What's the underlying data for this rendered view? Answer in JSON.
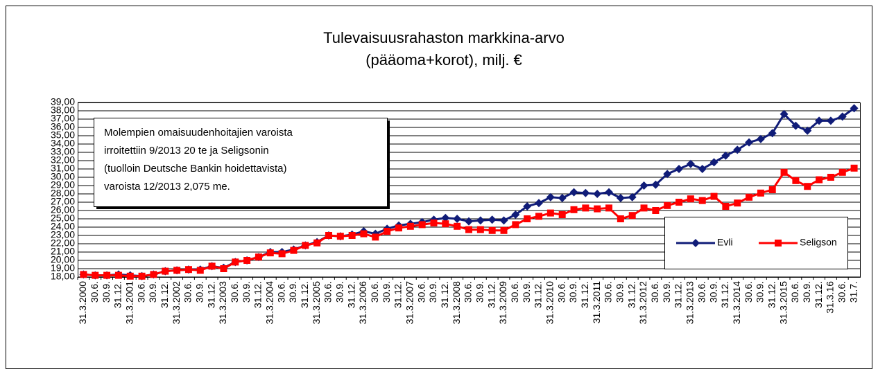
{
  "chart_data": {
    "type": "line",
    "title": [
      "Tulevaisuusrahaston markkina-arvo",
      "(pääoma+korot), milj. €"
    ],
    "annotation": [
      "Molempien omaisuudenhoitajien varoista",
      "irroitettiin 9/2013 20 te ja Seligsonin",
      "(tuolloin Deutsche Bankin hoidettavista)",
      "varoista 12/2013 2,075 me."
    ],
    "categories": [
      "31.3.2000",
      "30.6.",
      "30.9.",
      "31.12.",
      "31.3.2001",
      "30.6.",
      "30.9.",
      "31.12.",
      "31.3.2002",
      "30.6.",
      "30.9.",
      "31.12.",
      "31.3.2003",
      "30.6.",
      "30.9.",
      "31.12.",
      "31.3.2004",
      "30.6.",
      "30.9.",
      "31.12.",
      "31.3.2005",
      "30.6.",
      "30.9.",
      "31.12.",
      "31.3.2006",
      "30.6.",
      "30.9.",
      "31.12.",
      "31.3.2007",
      "30.6.",
      "30.9.",
      "31.12.",
      "31.3.2008",
      "30.6.",
      "30.9.",
      "31.12.",
      "31.3.2009",
      "30.6.",
      "30.9.",
      "31.12.",
      "31.3.2010",
      "30.6.",
      "30.9.",
      "31.12.",
      "31.3.2011",
      "30.6.",
      "30.9.",
      "31.12.",
      "31.3.2012",
      "30.6.",
      "30.9.",
      "31.12.",
      "31.3.2013",
      "30.6.",
      "30.9.",
      "31.12.",
      "31.3.2014",
      "30.6.",
      "30.9.",
      "31.12.",
      "31.3.2015",
      "30.6.",
      "30.9.",
      "31.12.",
      "31.3.16",
      "30.6.",
      "31.7."
    ],
    "series": [
      {
        "name": "Evli",
        "color": "#101c78",
        "marker": "diamond",
        "values": [
          18.3,
          18.2,
          18.2,
          18.3,
          18.2,
          18.1,
          18.3,
          18.7,
          18.8,
          18.9,
          18.9,
          19.3,
          19.1,
          19.8,
          20.0,
          20.4,
          21.0,
          21.0,
          21.3,
          21.8,
          22.2,
          23.0,
          22.9,
          23.1,
          23.5,
          23.2,
          23.8,
          24.2,
          24.4,
          24.6,
          24.9,
          25.1,
          25.0,
          24.7,
          24.8,
          24.9,
          24.8,
          25.5,
          26.5,
          26.9,
          27.6,
          27.5,
          28.2,
          28.1,
          28.0,
          28.2,
          27.5,
          27.6,
          29.0,
          29.1,
          30.4,
          31.0,
          31.6,
          31.0,
          31.8,
          32.6,
          33.3,
          34.2,
          34.6,
          35.3,
          37.6,
          36.2,
          35.6,
          36.8,
          36.8,
          37.3,
          38.3
        ]
      },
      {
        "name": "Seligson",
        "color": "#ff0000",
        "marker": "square",
        "values": [
          18.3,
          18.2,
          18.2,
          18.2,
          18.1,
          18.1,
          18.3,
          18.7,
          18.8,
          18.9,
          18.8,
          19.3,
          19.0,
          19.8,
          20.0,
          20.4,
          20.9,
          20.8,
          21.2,
          21.8,
          22.1,
          23.0,
          22.9,
          23.0,
          23.2,
          22.8,
          23.5,
          23.9,
          24.1,
          24.3,
          24.5,
          24.4,
          24.1,
          23.7,
          23.7,
          23.6,
          23.6,
          24.3,
          25.0,
          25.3,
          25.7,
          25.5,
          26.1,
          26.3,
          26.2,
          26.3,
          25.0,
          25.4,
          26.3,
          26.0,
          26.6,
          27.0,
          27.4,
          27.2,
          27.7,
          26.5,
          26.9,
          27.6,
          28.1,
          28.5,
          30.6,
          29.6,
          28.9,
          29.7,
          30.0,
          30.6,
          31.1
        ]
      }
    ],
    "ylim": [
      18,
      39
    ],
    "yticks": [
      {
        "value": 18,
        "label": "18,00"
      },
      {
        "value": 19,
        "label": "19,00"
      },
      {
        "value": 20,
        "label": "20,00"
      },
      {
        "value": 21,
        "label": "21,00"
      },
      {
        "value": 22,
        "label": "22,00"
      },
      {
        "value": 23,
        "label": "23,00"
      },
      {
        "value": 24,
        "label": "24,00"
      },
      {
        "value": 25,
        "label": "25,00"
      },
      {
        "value": 26,
        "label": "26,00"
      },
      {
        "value": 27,
        "label": "27,00"
      },
      {
        "value": 28,
        "label": "28,00"
      },
      {
        "value": 29,
        "label": "29,00"
      },
      {
        "value": 30,
        "label": "30,00"
      },
      {
        "value": 31,
        "label": "31,00"
      },
      {
        "value": 32,
        "label": "32,00"
      },
      {
        "value": 33,
        "label": "33,00"
      },
      {
        "value": 34,
        "label": "34,00"
      },
      {
        "value": 35,
        "label": "35,00"
      },
      {
        "value": 36,
        "label": "36,00"
      },
      {
        "value": 37,
        "label": "37,00"
      },
      {
        "value": 38,
        "label": "38,00"
      },
      {
        "value": 39,
        "label": "39,00"
      }
    ],
    "grid": true,
    "legend": "right"
  }
}
